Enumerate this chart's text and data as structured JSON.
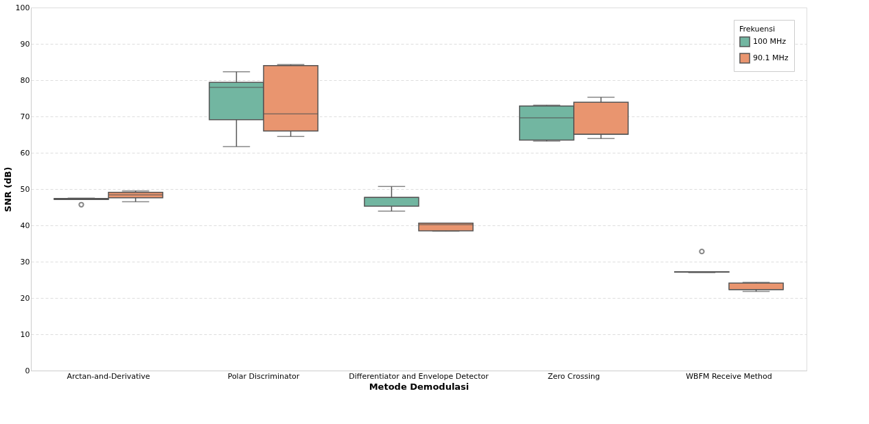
{
  "chart_data": {
    "type": "box",
    "xlabel": "Metode Demodulasi",
    "ylabel": "SNR (dB)",
    "legend_title": "Frekuensi",
    "legend": "top right",
    "grid": "y",
    "categories": [
      "Arctan-and-Derivative",
      "Polar Discriminator",
      "Differentiator and Envelope Detector",
      "Zero Crossing",
      "WBFM Receive Method"
    ],
    "ylim": [
      0,
      100
    ],
    "yticks": [
      0,
      10,
      20,
      30,
      40,
      50,
      60,
      70,
      80,
      90,
      100
    ],
    "series": [
      {
        "name": "100 MHz",
        "color": "#72b6a1",
        "boxes": [
          {
            "low": 47.1,
            "q1": 47.1,
            "median": 47.3,
            "q3": 47.4,
            "high": 47.5,
            "outliers": [
              45.7
            ]
          },
          {
            "low": 61.7,
            "q1": 69.1,
            "median": 78.0,
            "q3": 79.4,
            "high": 82.3
          },
          {
            "low": 43.9,
            "q1": 45.3,
            "median": 47.7,
            "q3": 47.7,
            "high": 50.7
          },
          {
            "low": 63.2,
            "q1": 63.5,
            "median": 69.6,
            "q3": 72.9,
            "high": 73.1
          },
          {
            "low": 27.0,
            "q1": 27.1,
            "median": 27.1,
            "q3": 27.2,
            "high": 27.2,
            "outliers": [
              32.8
            ]
          }
        ]
      },
      {
        "name": "90.1 MHz",
        "color": "#e9956f",
        "boxes": [
          {
            "low": 46.5,
            "q1": 47.6,
            "median": 48.4,
            "q3": 49.1,
            "high": 49.5
          },
          {
            "low": 64.5,
            "q1": 66.0,
            "median": 70.7,
            "q3": 84.0,
            "high": 84.3
          },
          {
            "low": 38.4,
            "q1": 38.5,
            "median": 40.2,
            "q3": 40.6,
            "high": 40.6
          },
          {
            "low": 63.9,
            "q1": 65.1,
            "median": 65.1,
            "q3": 73.9,
            "high": 75.3
          },
          {
            "low": 21.8,
            "q1": 22.3,
            "median": 22.3,
            "q3": 24.1,
            "high": 24.3
          }
        ]
      }
    ]
  }
}
